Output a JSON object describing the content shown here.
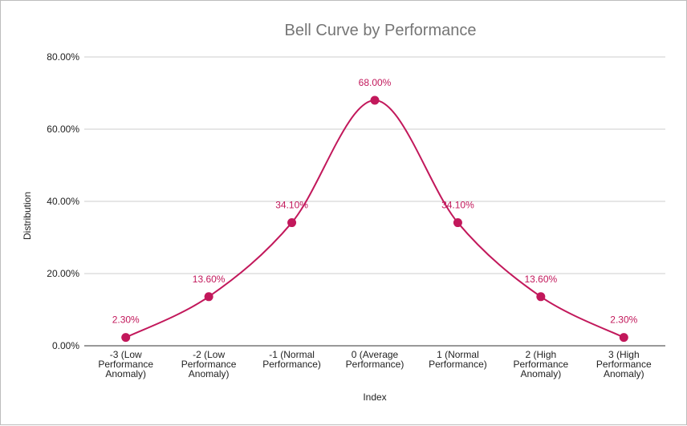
{
  "chart_data": {
    "type": "line",
    "title": "Bell Curve by Performance",
    "xlabel": "Index",
    "ylabel": "Distribution",
    "categories": [
      [
        "-3 (Low",
        "Performance",
        "Anomaly)"
      ],
      [
        "-2 (Low",
        "Performance",
        "Anomaly)"
      ],
      [
        "-1 (Normal",
        "Performance)"
      ],
      [
        "0 (Average",
        "Performance)"
      ],
      [
        "1 (Normal",
        "Performance)"
      ],
      [
        "2 (High",
        "Performance",
        "Anomaly)"
      ],
      [
        "3 (High",
        "Performance",
        "Anomaly)"
      ]
    ],
    "values": [
      0.023,
      0.136,
      0.341,
      0.68,
      0.341,
      0.136,
      0.023
    ],
    "data_labels": [
      "2.30%",
      "13.60%",
      "34.10%",
      "68.00%",
      "34.10%",
      "13.60%",
      "2.30%"
    ],
    "ylim": [
      0,
      0.8
    ],
    "yticks": [
      0,
      0.2,
      0.4,
      0.6,
      0.8
    ],
    "ytick_labels": [
      "0.00%",
      "20.00%",
      "40.00%",
      "60.00%",
      "80.00%"
    ],
    "smooth": true,
    "grid": true,
    "legend": "none",
    "color": "#c2185b"
  }
}
